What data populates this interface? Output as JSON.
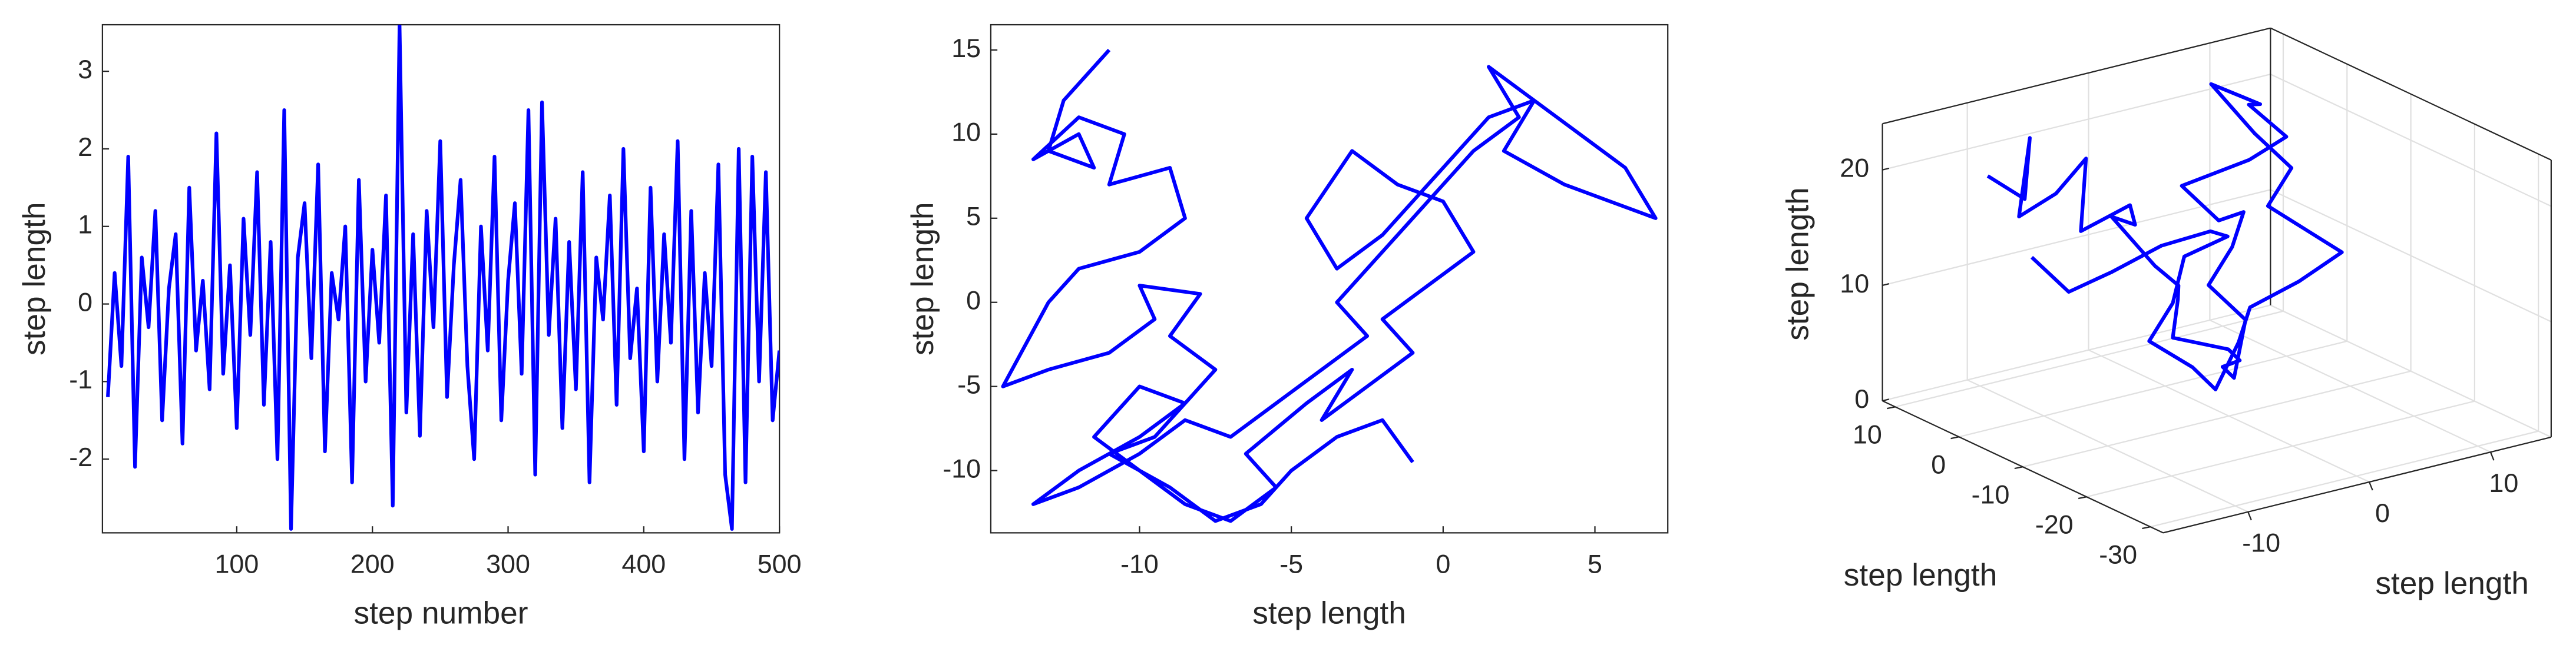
{
  "chart_data": [
    {
      "type": "line",
      "xlabel": "step number",
      "ylabel": "step length",
      "color": "#0000ff",
      "xlim": [
        1,
        500
      ],
      "ylim": [
        -2.95,
        3.6
      ],
      "xticks": [
        100,
        200,
        300,
        400,
        500
      ],
      "yticks": [
        -2,
        -1,
        0,
        1,
        2,
        3
      ],
      "x": [
        5,
        10,
        15,
        20,
        25,
        30,
        35,
        40,
        45,
        50,
        55,
        60,
        65,
        70,
        75,
        80,
        85,
        90,
        95,
        100,
        105,
        110,
        115,
        120,
        125,
        130,
        135,
        140,
        145,
        150,
        155,
        160,
        165,
        170,
        175,
        180,
        185,
        190,
        195,
        200,
        205,
        210,
        215,
        220,
        225,
        230,
        235,
        240,
        245,
        250,
        255,
        260,
        265,
        270,
        275,
        280,
        285,
        290,
        295,
        300,
        305,
        310,
        315,
        320,
        325,
        330,
        335,
        340,
        345,
        350,
        355,
        360,
        365,
        370,
        375,
        380,
        385,
        390,
        395,
        400,
        405,
        410,
        415,
        420,
        425,
        430,
        435,
        440,
        445,
        450,
        455,
        460,
        465,
        470,
        475,
        480,
        485,
        490,
        495,
        500
      ],
      "series": [
        {
          "values": [
            -1.2,
            0.4,
            -0.8,
            1.9,
            -2.1,
            0.6,
            -0.3,
            1.2,
            -1.5,
            0.2,
            0.9,
            -1.8,
            1.5,
            -0.6,
            0.3,
            -1.1,
            2.2,
            -0.9,
            0.5,
            -1.6,
            1.1,
            -0.4,
            1.7,
            -1.3,
            0.8,
            -2.0,
            2.5,
            -2.9,
            0.6,
            1.3,
            -0.7,
            1.8,
            -1.9,
            0.4,
            -0.2,
            1.0,
            -2.3,
            1.6,
            -1.0,
            0.7,
            -0.5,
            1.4,
            -2.6,
            3.6,
            -1.4,
            0.9,
            -1.7,
            1.2,
            -0.3,
            2.1,
            -1.2,
            0.5,
            1.6,
            -0.8,
            -2.0,
            1.0,
            -0.6,
            1.9,
            -1.5,
            0.3,
            1.3,
            -0.9,
            2.5,
            -2.2,
            2.6,
            -0.4,
            1.1,
            -1.6,
            0.8,
            -1.1,
            1.7,
            -2.3,
            0.6,
            -0.2,
            1.4,
            -1.3,
            2.0,
            -0.7,
            0.2,
            -1.9,
            1.5,
            -1.0,
            0.9,
            -0.5,
            2.1,
            -2.0,
            1.2,
            -1.4,
            0.4,
            -0.8,
            1.8,
            -2.2,
            -2.9,
            2.0,
            -2.3,
            1.9,
            -1.0,
            1.7,
            -1.5,
            -0.6
          ]
        }
      ]
    },
    {
      "type": "line",
      "xlabel": "step length",
      "ylabel": "step length",
      "color": "#0000ff",
      "xlim": [
        -14.9,
        7.4
      ],
      "ylim": [
        -13.7,
        16.5
      ],
      "xticks": [
        -10,
        -5,
        0,
        5
      ],
      "yticks": [
        -10,
        -5,
        0,
        5,
        10,
        15
      ],
      "x": [
        -11,
        -12.5,
        -13,
        -11.5,
        -12,
        -13.5,
        -12,
        -10.5,
        -11,
        -9,
        -8.5,
        -10,
        -12,
        -13,
        -14.5,
        -13,
        -11,
        -9.5,
        -10,
        -8,
        -9,
        -7.5,
        -8.5,
        -10,
        -11.5,
        -10,
        -8.5,
        -7,
        -5.5,
        -6.5,
        -4.5,
        -3,
        -4,
        -2.5,
        -1,
        -2,
        -0.5,
        1,
        0,
        -1.5,
        -3,
        -4.5,
        -3.5,
        -2,
        0,
        1.5,
        3,
        2,
        4,
        5.5,
        7,
        6,
        4.5,
        3,
        1.5,
        2.5,
        1,
        -0.5,
        -2,
        -3.5,
        -2.5,
        -4,
        -5.5,
        -7,
        -8.5,
        -10,
        -12,
        -13.5,
        -12,
        -10,
        -8.5,
        -9.5,
        -11,
        -9,
        -7.5,
        -6,
        -5,
        -3.5,
        -2,
        -1
      ],
      "series": [
        {
          "values": [
            15,
            12,
            9,
            8,
            10,
            8.5,
            11,
            10,
            7,
            8,
            5,
            3,
            2,
            0,
            -5,
            -4,
            -3,
            -1,
            1,
            0.5,
            -2,
            -4,
            -6,
            -5,
            -8,
            -10,
            -12,
            -13,
            -11,
            -9,
            -6,
            -4,
            -7,
            -5,
            -3,
            -1,
            1,
            3,
            6,
            7,
            9,
            5,
            2,
            4,
            8,
            11,
            12,
            9,
            7,
            6,
            5,
            8,
            10,
            12,
            14,
            11,
            9,
            6,
            3,
            0,
            -2,
            -4,
            -6,
            -8,
            -7,
            -9,
            -11,
            -12,
            -10,
            -8,
            -6,
            -8,
            -9,
            -11,
            -13,
            -12,
            -10,
            -8,
            -7,
            -9.5
          ]
        }
      ]
    },
    {
      "type": "line3d",
      "xlabel": "step length",
      "ylabel": "step length",
      "zlabel": "step length",
      "color": "#0000ff",
      "xlim": [
        -17,
        15
      ],
      "ylim": [
        -32,
        12
      ],
      "zlim": [
        0,
        24
      ],
      "xticks": [
        -10,
        0,
        10
      ],
      "yticks": [
        -30,
        -20,
        -10,
        0,
        10
      ],
      "zticks": [
        0,
        10,
        20
      ],
      "grid": true,
      "x": [
        -12,
        -10,
        -8,
        -11,
        -9,
        -6,
        -8,
        -5,
        -3,
        -6,
        -4,
        -1,
        0,
        -2,
        1,
        3,
        0,
        2,
        4,
        2,
        5,
        7,
        6,
        4,
        8,
        10,
        9,
        11,
        8,
        10,
        12,
        9,
        11,
        13,
        10,
        7,
        5,
        3,
        1,
        -1,
        -3,
        -5,
        -2,
        0,
        2,
        -1,
        -4,
        -7,
        -9,
        -11
      ],
      "y": [
        5,
        3,
        6,
        2,
        0,
        1,
        -2,
        -4,
        -1,
        -3,
        -6,
        -4,
        -2,
        -5,
        -8,
        -6,
        -9,
        -7,
        -5,
        -3,
        -1,
        1,
        3,
        5,
        2,
        0,
        4,
        6,
        8,
        5,
        3,
        1,
        -1,
        -3,
        -2,
        0,
        -2,
        -4,
        -6,
        -8,
        -10,
        -7,
        -5,
        -3,
        -6,
        -9,
        -7,
        -5,
        -2,
        0
      ],
      "z": [
        20,
        18,
        22,
        17,
        19,
        21,
        16,
        18,
        15,
        17,
        13,
        10,
        8,
        6,
        5,
        3,
        4,
        2,
        6,
        9,
        11,
        13,
        12,
        15,
        17,
        19,
        21,
        20,
        22,
        18,
        15,
        13,
        11,
        9,
        7,
        5,
        3,
        2,
        1,
        3,
        5,
        7,
        9,
        12,
        14,
        16,
        15,
        13,
        11,
        14
      ]
    }
  ]
}
